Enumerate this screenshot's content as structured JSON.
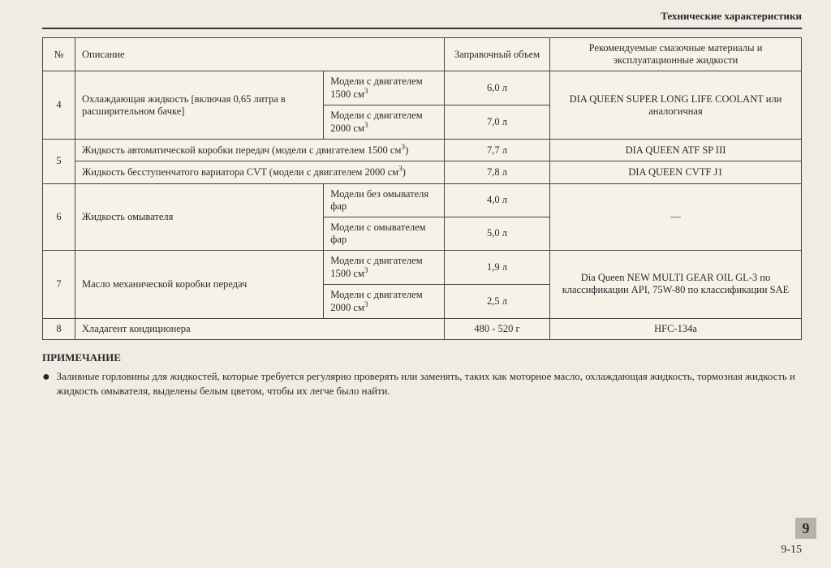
{
  "header": {
    "title": "Технические характеристики"
  },
  "table": {
    "columns": {
      "num": "№",
      "desc": "Описание",
      "vol": "Заправочный объем",
      "rec": "Рекомендуемые смазочные материалы и эксплуатационные жидкости"
    },
    "r4": {
      "num": "4",
      "desc": "Охлаждающая жидкость [включая 0,65 литра в расширительном бачке]",
      "sub1": "Модели с двигателем 1500 см",
      "vol1": "6,0 л",
      "sub2": "Модели с двигателем 2000 см",
      "vol2": "7,0 л",
      "rec": "DIA QUEEN SUPER LONG LIFE COOLANT или аналогичная"
    },
    "r5": {
      "num": "5",
      "desc1": "Жидкость автоматической коробки передач (модели с двигателем 1500 см",
      "desc1_tail": ")",
      "vol1": "7,7 л",
      "rec1": "DIA QUEEN ATF SP III",
      "desc2": "Жидкость бесступенчатого вариатора CVT (модели с двигателем 2000 см",
      "desc2_tail": ")",
      "vol2": "7,8 л",
      "rec2": "DIA QUEEN CVTF J1"
    },
    "r6": {
      "num": "6",
      "desc": "Жидкость омывателя",
      "sub1": "Модели без омывателя фар",
      "vol1": "4,0 л",
      "sub2": "Модели с омывателем фар",
      "vol2": "5,0 л",
      "rec": "—"
    },
    "r7": {
      "num": "7",
      "desc": "Масло механической коробки передач",
      "sub1": "Модели с двигателем 1500 см",
      "vol1": "1,9 л",
      "sub2": "Модели с двигателем 2000 см",
      "vol2": "2,5 л",
      "rec": "Dia Queen NEW MULTI GEAR OIL GL-3 по классификации API, 75W-80 по классификации SAE"
    },
    "r8": {
      "num": "8",
      "desc": "Хладагент кондиционера",
      "vol": "480 - 520 г",
      "rec": "HFC-134a"
    }
  },
  "note": {
    "heading": "ПРИМЕЧАНИЕ",
    "text": "Заливные горловины для жидкостей, которые требуется регулярно проверять или заменять, таких как моторное масло, охлаждающая жидкость, тормозная жидкость и жидкость омывателя, выделены белым цветом, чтобы их легче было найти."
  },
  "footer": {
    "page": "9-15",
    "tab": "9"
  },
  "style": {
    "background": "#f0ece3",
    "border_color": "#444",
    "text_color": "#2a2a2a",
    "tab_bg": "#b8b2a5"
  }
}
